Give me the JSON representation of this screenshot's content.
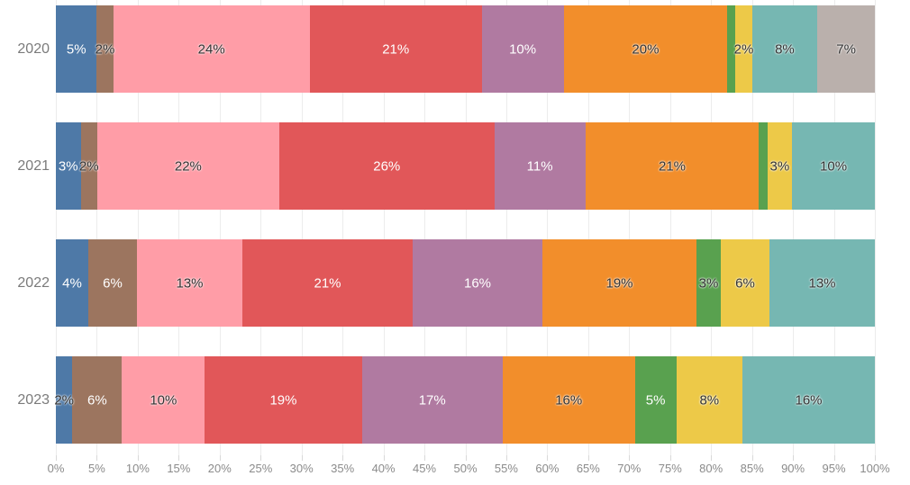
{
  "chart_data": {
    "type": "bar",
    "variant": "horizontal-stacked-100pct",
    "title": "",
    "xlabel": "",
    "ylabel": "",
    "categories": [
      "2020",
      "2021",
      "2022",
      "2023"
    ],
    "series": [
      {
        "name": "blue",
        "color": "#4e79a7",
        "values": [
          5,
          3,
          4,
          2
        ]
      },
      {
        "name": "brown",
        "color": "#9c755f",
        "values": [
          2,
          2,
          6,
          6
        ]
      },
      {
        "name": "pink",
        "color": "#ff9da7",
        "values": [
          24,
          22,
          13,
          10
        ]
      },
      {
        "name": "red",
        "color": "#e15759",
        "values": [
          21,
          26,
          21,
          19
        ]
      },
      {
        "name": "purple",
        "color": "#b07aa1",
        "values": [
          10,
          11,
          16,
          17
        ]
      },
      {
        "name": "orange",
        "color": "#f28e2b",
        "values": [
          20,
          21,
          19,
          16
        ]
      },
      {
        "name": "green",
        "color": "#59a14f",
        "values": [
          1,
          1,
          3,
          5
        ]
      },
      {
        "name": "yellow",
        "color": "#edc948",
        "values": [
          2,
          3,
          6,
          8
        ]
      },
      {
        "name": "teal",
        "color": "#76b7b2",
        "values": [
          8,
          10,
          13,
          16
        ]
      },
      {
        "name": "gray",
        "color": "#bab0ac",
        "values": [
          7,
          0,
          0,
          0
        ]
      }
    ],
    "x_axis": {
      "range": [
        0,
        100
      ],
      "tick_labels": [
        "0%",
        "5%",
        "10%",
        "15%",
        "20%",
        "25%",
        "30%",
        "35%",
        "40%",
        "45%",
        "50%",
        "55%",
        "60%",
        "65%",
        "70%",
        "75%",
        "80%",
        "85%",
        "90%",
        "95%",
        "100%"
      ]
    },
    "grid": true,
    "legend": false
  },
  "rows": [
    {
      "year": "2020",
      "bar_top": 6,
      "segments": [
        {
          "color": "#4e79a7",
          "value": 5,
          "label": "5%",
          "label_color": "#ffffff"
        },
        {
          "color": "#9c755f",
          "value": 2,
          "label": "2%",
          "label_color": "#333333"
        },
        {
          "color": "#ff9da7",
          "value": 24,
          "label": "24%",
          "label_color": "#333333"
        },
        {
          "color": "#e15759",
          "value": 21,
          "label": "21%",
          "label_color": "#ffffff"
        },
        {
          "color": "#b07aa1",
          "value": 10,
          "label": "10%",
          "label_color": "#ffffff"
        },
        {
          "color": "#f28e2b",
          "value": 20,
          "label": "20%",
          "label_color": "#333333"
        },
        {
          "color": "#59a14f",
          "value": 1,
          "label": "",
          "label_color": "#333333"
        },
        {
          "color": "#edc948",
          "value": 2,
          "label": "2%",
          "label_color": "#333333"
        },
        {
          "color": "#76b7b2",
          "value": 8,
          "label": "8%",
          "label_color": "#333333"
        },
        {
          "color": "#bab0ac",
          "value": 7,
          "label": "7%",
          "label_color": "#333333"
        }
      ]
    },
    {
      "year": "2021",
      "bar_top": 136,
      "segments": [
        {
          "color": "#4e79a7",
          "value": 3,
          "label": "3%",
          "label_color": "#ffffff"
        },
        {
          "color": "#9c755f",
          "value": 2,
          "label": "2%",
          "label_color": "#333333"
        },
        {
          "color": "#ff9da7",
          "value": 22,
          "label": "22%",
          "label_color": "#333333"
        },
        {
          "color": "#e15759",
          "value": 26,
          "label": "26%",
          "label_color": "#ffffff"
        },
        {
          "color": "#b07aa1",
          "value": 11,
          "label": "11%",
          "label_color": "#ffffff"
        },
        {
          "color": "#f28e2b",
          "value": 21,
          "label": "21%",
          "label_color": "#333333"
        },
        {
          "color": "#59a14f",
          "value": 1,
          "label": "",
          "label_color": "#333333"
        },
        {
          "color": "#edc948",
          "value": 3,
          "label": "3%",
          "label_color": "#333333"
        },
        {
          "color": "#76b7b2",
          "value": 10,
          "label": "10%",
          "label_color": "#333333"
        }
      ]
    },
    {
      "year": "2022",
      "bar_top": 266,
      "segments": [
        {
          "color": "#4e79a7",
          "value": 4,
          "label": "4%",
          "label_color": "#ffffff"
        },
        {
          "color": "#9c755f",
          "value": 6,
          "label": "6%",
          "label_color": "#ffffff"
        },
        {
          "color": "#ff9da7",
          "value": 13,
          "label": "13%",
          "label_color": "#333333"
        },
        {
          "color": "#e15759",
          "value": 21,
          "label": "21%",
          "label_color": "#ffffff"
        },
        {
          "color": "#b07aa1",
          "value": 16,
          "label": "16%",
          "label_color": "#ffffff"
        },
        {
          "color": "#f28e2b",
          "value": 19,
          "label": "19%",
          "label_color": "#333333"
        },
        {
          "color": "#59a14f",
          "value": 3,
          "label": "3%",
          "label_color": "#333333"
        },
        {
          "color": "#edc948",
          "value": 6,
          "label": "6%",
          "label_color": "#333333"
        },
        {
          "color": "#76b7b2",
          "value": 13,
          "label": "13%",
          "label_color": "#333333"
        }
      ]
    },
    {
      "year": "2023",
      "bar_top": 396,
      "segments": [
        {
          "color": "#4e79a7",
          "value": 2,
          "label": "2%",
          "label_color": "#333333"
        },
        {
          "color": "#9c755f",
          "value": 6,
          "label": "6%",
          "label_color": "#ffffff"
        },
        {
          "color": "#ff9da7",
          "value": 10,
          "label": "10%",
          "label_color": "#333333"
        },
        {
          "color": "#e15759",
          "value": 19,
          "label": "19%",
          "label_color": "#ffffff"
        },
        {
          "color": "#b07aa1",
          "value": 17,
          "label": "17%",
          "label_color": "#ffffff"
        },
        {
          "color": "#f28e2b",
          "value": 16,
          "label": "16%",
          "label_color": "#333333"
        },
        {
          "color": "#59a14f",
          "value": 5,
          "label": "5%",
          "label_color": "#ffffff"
        },
        {
          "color": "#edc948",
          "value": 8,
          "label": "8%",
          "label_color": "#333333"
        },
        {
          "color": "#76b7b2",
          "value": 16,
          "label": "16%",
          "label_color": "#333333"
        }
      ]
    }
  ],
  "layout_colors": {
    "background": "#ffffff",
    "gridline": "#ececec",
    "tick": "#d9d9d9",
    "axis_label": "#8b8b8b",
    "year_label": "#7b7b7b"
  }
}
